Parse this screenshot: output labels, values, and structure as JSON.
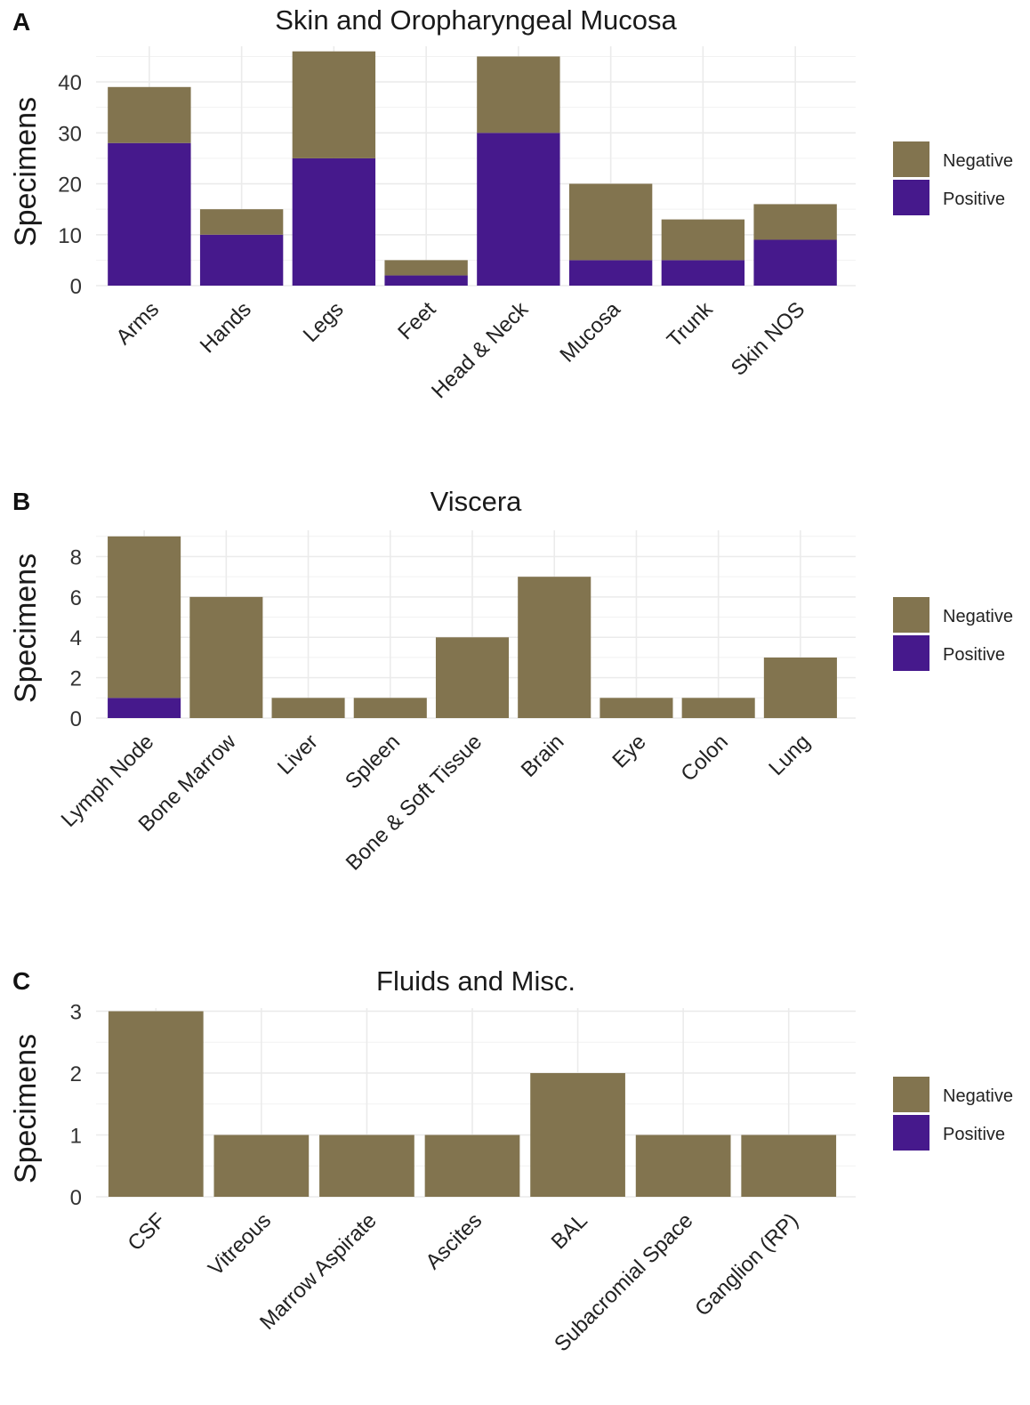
{
  "colors": {
    "negative": "#82744f",
    "positive": "#46198c",
    "grid": "#ebebeb"
  },
  "chart_data": [
    {
      "panel": "A",
      "type": "bar",
      "stacked": true,
      "title": "Skin and Oropharyngeal Mucosa",
      "ylabel": "Specimens",
      "xlabel": "",
      "categories": [
        "Arms",
        "Hands",
        "Legs",
        "Feet",
        "Head & Neck",
        "Mucosa",
        "Trunk",
        "Skin NOS"
      ],
      "series": [
        {
          "name": "Positive",
          "values": [
            28,
            10,
            25,
            2,
            30,
            5,
            5,
            9
          ]
        },
        {
          "name": "Negative",
          "values": [
            11,
            5,
            21,
            3,
            15,
            15,
            8,
            7
          ]
        }
      ],
      "ylim": [
        0,
        47
      ],
      "yticks": [
        0,
        10,
        20,
        30,
        40
      ],
      "legend": [
        "Negative",
        "Positive"
      ],
      "legend_position": "right",
      "grid": true
    },
    {
      "panel": "B",
      "type": "bar",
      "stacked": true,
      "title": "Viscera",
      "ylabel": "Specimens",
      "xlabel": "",
      "categories": [
        "Lymph Node",
        "Bone Marrow",
        "Liver",
        "Spleen",
        "Bone & Soft Tissue",
        "Brain",
        "Eye",
        "Colon",
        "Lung"
      ],
      "series": [
        {
          "name": "Positive",
          "values": [
            1,
            0,
            0,
            0,
            0,
            0,
            0,
            0,
            0
          ]
        },
        {
          "name": "Negative",
          "values": [
            8,
            6,
            1,
            1,
            4,
            7,
            1,
            1,
            3
          ]
        }
      ],
      "ylim": [
        0,
        9.3
      ],
      "yticks": [
        0,
        2,
        4,
        6,
        8
      ],
      "legend": [
        "Negative",
        "Positive"
      ],
      "legend_position": "right",
      "grid": true
    },
    {
      "panel": "C",
      "type": "bar",
      "stacked": true,
      "title": "Fluids and Misc.",
      "ylabel": "Specimens",
      "xlabel": "",
      "categories": [
        "CSF",
        "Vitreous",
        "Marrow Aspirate",
        "Ascites",
        "BAL",
        "Subacromial Space",
        "Ganglion (RP)"
      ],
      "series": [
        {
          "name": "Positive",
          "values": [
            0,
            0,
            0,
            0,
            0,
            0,
            0
          ]
        },
        {
          "name": "Negative",
          "values": [
            3,
            1,
            1,
            1,
            2,
            1,
            1
          ]
        }
      ],
      "ylim": [
        0,
        3.05
      ],
      "yticks": [
        0,
        1,
        2,
        3
      ],
      "legend": [
        "Negative",
        "Positive"
      ],
      "legend_position": "right",
      "grid": true
    }
  ]
}
